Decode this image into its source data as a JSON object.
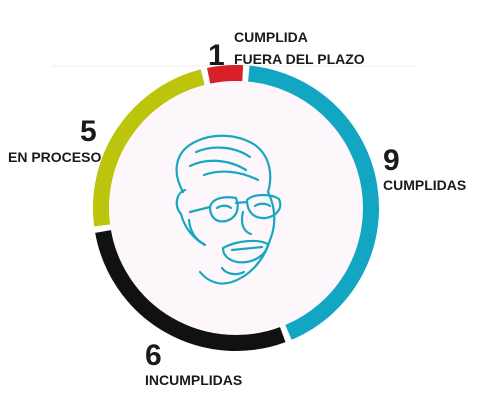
{
  "chart_data": {
    "type": "pie",
    "title": "",
    "categories": [
      "CUMPLIDA FUERA DEL PLAZO",
      "CUMPLIDAS",
      "INCUMPLIDAS",
      "EN PROCESO"
    ],
    "values": [
      1,
      9,
      6,
      5
    ],
    "colors": [
      "#d8202a",
      "#12a6c3",
      "#111111",
      "#bcc40c"
    ],
    "center_fill": "#fdf6fa",
    "labels": [
      {
        "value_text": "1",
        "lines": [
          "CUMPLIDA",
          "FUERA DEL PLAZO"
        ]
      },
      {
        "value_text": "9",
        "lines": [
          "CUMPLIDAS"
        ]
      },
      {
        "value_text": "6",
        "lines": [
          "INCUMPLIDAS"
        ]
      },
      {
        "value_text": "5",
        "lines": [
          "EN PROCESO"
        ]
      }
    ],
    "center_image": "caricature-face-icon"
  }
}
